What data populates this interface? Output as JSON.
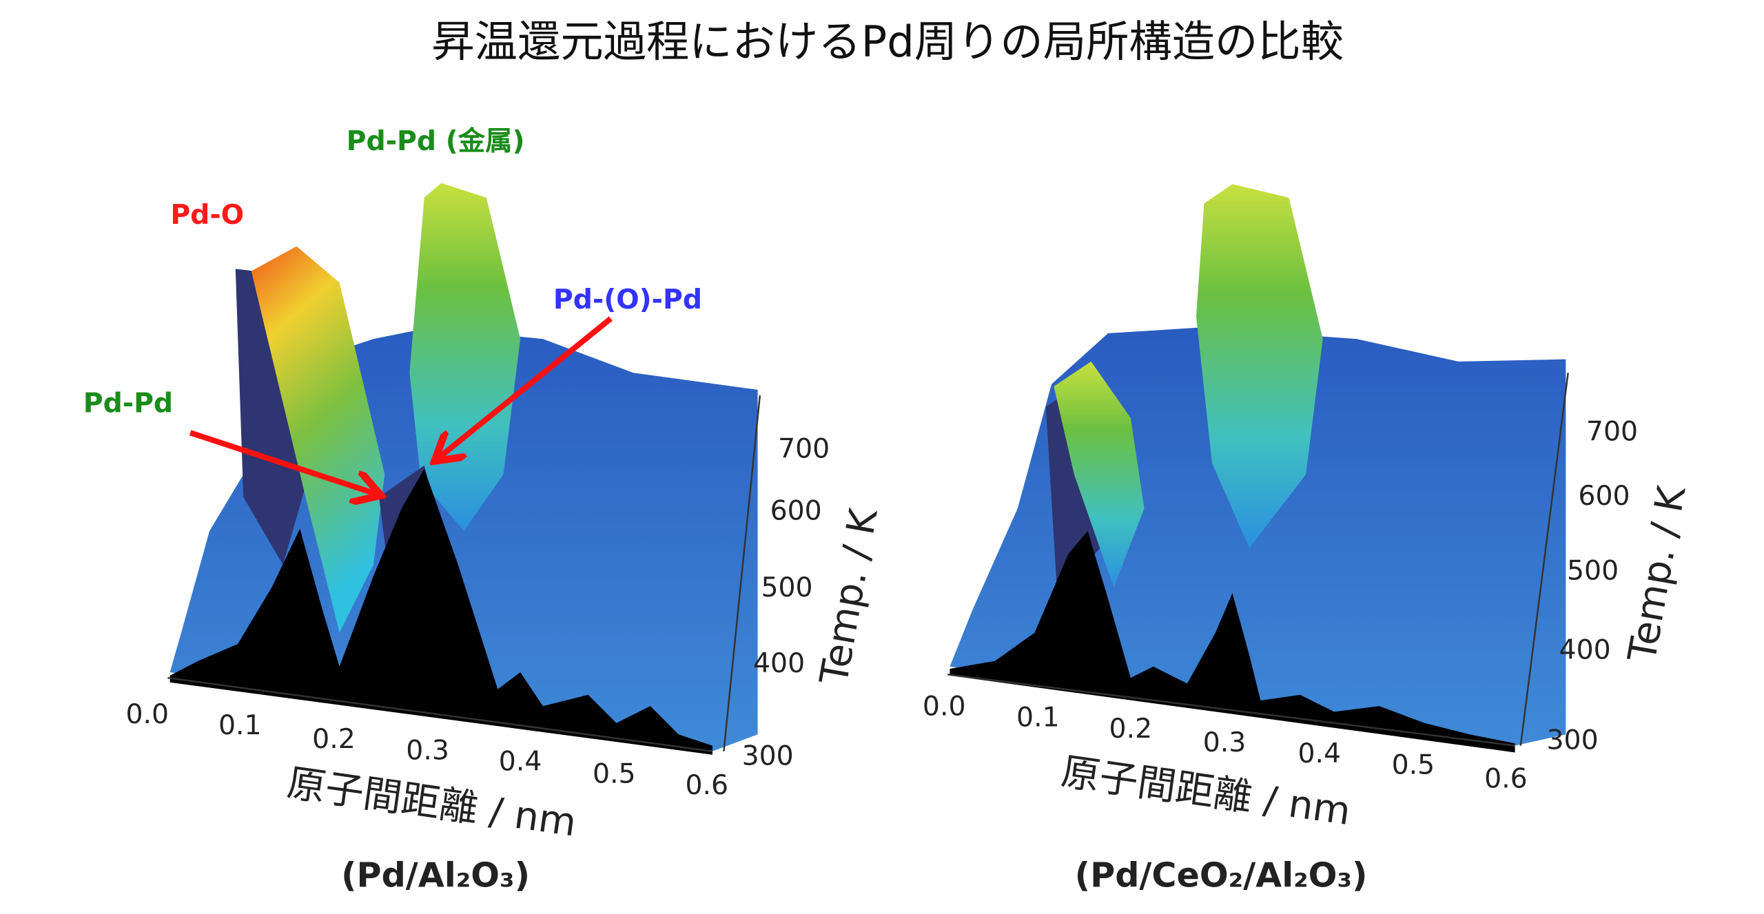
{
  "title": "昇温還元過程におけるPd周りの局所構造の比較",
  "colors": {
    "pd_o": "#ff1a1a",
    "pd_pd": "#1a8c1a",
    "pd_o_pd": "#3333ff",
    "arrow": "#ff1010",
    "surface_base": "#2a63c0"
  },
  "chart_data": [
    {
      "type": "surface-3d",
      "sample_label": "(Pd/Al₂O₃)",
      "xlabel": "原子間距離 / nm",
      "ylabel": "Temp. / K",
      "xlim": [
        0.0,
        0.6
      ],
      "ylim": [
        300,
        700
      ],
      "x_ticks": [
        "0.0",
        "0.1",
        "0.2",
        "0.3",
        "0.4",
        "0.5",
        "0.6"
      ],
      "y_ticks": [
        "300",
        "400",
        "500",
        "600",
        "700"
      ],
      "annotations": [
        {
          "text": "Pd-Pd (金属)",
          "color": "#1a8c1a"
        },
        {
          "text": "Pd-O",
          "color": "#ff1a1a"
        },
        {
          "text": "Pd-(O)-Pd",
          "color": "#3333ff"
        },
        {
          "text": "Pd-Pd",
          "color": "#1a8c1a"
        }
      ]
    },
    {
      "type": "surface-3d",
      "sample_label": "(Pd/CeO₂/Al₂O₃)",
      "xlabel": "原子間距離 / nm",
      "ylabel": "Temp. / K",
      "xlim": [
        0.0,
        0.6
      ],
      "ylim": [
        300,
        700
      ],
      "x_ticks": [
        "0.0",
        "0.1",
        "0.2",
        "0.3",
        "0.4",
        "0.5",
        "0.6"
      ],
      "y_ticks": [
        "300",
        "400",
        "500",
        "600",
        "700"
      ]
    }
  ]
}
